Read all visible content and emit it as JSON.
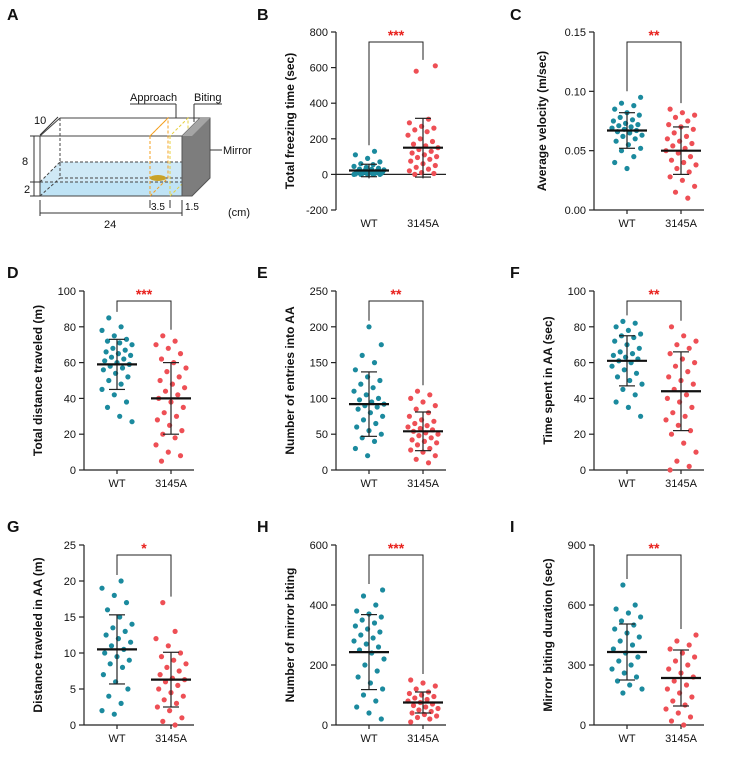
{
  "colors": {
    "wt": "#1b8a9e",
    "mutant": "#ee4f55",
    "sig": "#e8201c",
    "axis": "#222222"
  },
  "panel_a": {
    "letter": "A",
    "labels": {
      "approach": "Approach",
      "biting": "Biting",
      "mirror": "Mirror",
      "width": "10",
      "height": "8",
      "water": "2",
      "zone": "3.5",
      "gap": "1.5",
      "length": "24",
      "unit": "(cm)"
    }
  },
  "chart_data": [
    {
      "letter": "B",
      "type": "scatter",
      "ylabel": "Total freezing time (sec)",
      "categories": [
        "WT",
        "3145A"
      ],
      "ylim": [
        -200,
        800
      ],
      "yticks": [
        -200,
        0,
        200,
        400,
        600,
        800
      ],
      "significance": "***",
      "series": [
        {
          "name": "WT",
          "mean": 22,
          "sd": 35,
          "values": [
            0,
            0,
            0,
            0,
            0,
            2,
            4,
            5,
            6,
            8,
            10,
            10,
            12,
            14,
            16,
            18,
            20,
            22,
            25,
            28,
            30,
            35,
            40,
            45,
            55,
            60,
            70,
            90,
            110,
            130
          ]
        },
        {
          "name": "3145A",
          "mean": 150,
          "sd": 165,
          "values": [
            0,
            5,
            10,
            20,
            30,
            40,
            50,
            60,
            75,
            85,
            95,
            100,
            110,
            120,
            130,
            140,
            150,
            160,
            170,
            185,
            200,
            220,
            240,
            250,
            260,
            270,
            290,
            310,
            580,
            610
          ]
        }
      ]
    },
    {
      "letter": "C",
      "type": "scatter",
      "ylabel": "Average  velocity (m/sec)",
      "categories": [
        "WT",
        "3145A"
      ],
      "ylim": [
        0,
        0.15
      ],
      "yticks": [
        0.0,
        0.05,
        0.1,
        0.15
      ],
      "tick_decimals": 2,
      "significance": "**",
      "series": [
        {
          "name": "WT",
          "mean": 0.067,
          "sd": 0.015,
          "values": [
            0.035,
            0.04,
            0.045,
            0.05,
            0.052,
            0.055,
            0.058,
            0.06,
            0.062,
            0.063,
            0.065,
            0.066,
            0.067,
            0.068,
            0.069,
            0.07,
            0.071,
            0.072,
            0.073,
            0.075,
            0.076,
            0.078,
            0.08,
            0.082,
            0.085,
            0.088,
            0.09,
            0.095
          ]
        },
        {
          "name": "3145A",
          "mean": 0.05,
          "sd": 0.02,
          "values": [
            0.01,
            0.015,
            0.02,
            0.025,
            0.028,
            0.032,
            0.035,
            0.038,
            0.04,
            0.042,
            0.045,
            0.048,
            0.05,
            0.052,
            0.054,
            0.056,
            0.058,
            0.06,
            0.062,
            0.065,
            0.068,
            0.07,
            0.072,
            0.075,
            0.078,
            0.08,
            0.082,
            0.085
          ]
        }
      ]
    },
    {
      "letter": "D",
      "type": "scatter",
      "ylabel": "Total distance traveled (m)",
      "categories": [
        "WT",
        "3145A"
      ],
      "ylim": [
        0,
        100
      ],
      "yticks": [
        0,
        20,
        40,
        60,
        80,
        100
      ],
      "significance": "***",
      "series": [
        {
          "name": "WT",
          "mean": 59,
          "sd": 14,
          "values": [
            27,
            30,
            35,
            38,
            42,
            45,
            48,
            50,
            52,
            54,
            56,
            57,
            58,
            59,
            60,
            61,
            62,
            63,
            64,
            65,
            66,
            67,
            68,
            70,
            71,
            72,
            73,
            75,
            78,
            80,
            85
          ]
        },
        {
          "name": "3145A",
          "mean": 40,
          "sd": 20,
          "values": [
            5,
            8,
            10,
            14,
            18,
            20,
            22,
            25,
            28,
            30,
            32,
            35,
            38,
            40,
            42,
            44,
            46,
            48,
            50,
            52,
            55,
            57,
            60,
            62,
            65,
            68,
            70,
            72,
            75
          ]
        }
      ]
    },
    {
      "letter": "E",
      "type": "scatter",
      "ylabel": "Number of entries into AA",
      "categories": [
        "WT",
        "3145A"
      ],
      "ylim": [
        0,
        250
      ],
      "yticks": [
        0,
        50,
        100,
        150,
        200,
        250
      ],
      "significance": "**",
      "series": [
        {
          "name": "WT",
          "mean": 92,
          "sd": 45,
          "values": [
            20,
            30,
            40,
            45,
            50,
            55,
            60,
            65,
            70,
            75,
            80,
            85,
            88,
            90,
            92,
            95,
            98,
            100,
            105,
            110,
            115,
            120,
            125,
            130,
            140,
            150,
            160,
            175,
            200
          ]
        },
        {
          "name": "3145A",
          "mean": 54,
          "sd": 27,
          "values": [
            10,
            15,
            20,
            25,
            28,
            30,
            35,
            38,
            40,
            42,
            45,
            48,
            50,
            52,
            54,
            56,
            58,
            60,
            62,
            65,
            68,
            70,
            75,
            80,
            85,
            90,
            95,
            100,
            105,
            110
          ]
        }
      ]
    },
    {
      "letter": "F",
      "type": "scatter",
      "ylabel": "Time spent in AA (sec)",
      "categories": [
        "WT",
        "3145A"
      ],
      "ylim": [
        0,
        100
      ],
      "yticks": [
        0,
        20,
        40,
        60,
        80,
        100
      ],
      "significance": "**",
      "series": [
        {
          "name": "WT",
          "mean": 61,
          "sd": 14,
          "values": [
            30,
            35,
            38,
            42,
            45,
            48,
            50,
            52,
            54,
            56,
            58,
            60,
            61,
            62,
            63,
            64,
            65,
            66,
            68,
            70,
            72,
            74,
            75,
            76,
            78,
            80,
            82,
            83
          ]
        },
        {
          "name": "3145A",
          "mean": 44,
          "sd": 22,
          "values": [
            0,
            2,
            5,
            10,
            15,
            20,
            22,
            25,
            28,
            30,
            32,
            35,
            38,
            40,
            42,
            45,
            48,
            50,
            52,
            55,
            58,
            60,
            62,
            65,
            68,
            70,
            72,
            75,
            80
          ]
        }
      ]
    },
    {
      "letter": "G",
      "type": "scatter",
      "ylabel": "Distance traveled in AA (m)",
      "categories": [
        "WT",
        "3145A"
      ],
      "ylim": [
        0,
        25
      ],
      "yticks": [
        0,
        5,
        10,
        15,
        20,
        25
      ],
      "significance": "*",
      "series": [
        {
          "name": "WT",
          "mean": 10.5,
          "sd": 4.8,
          "values": [
            1.5,
            2,
            3,
            4,
            5,
            6,
            7,
            8,
            8.5,
            9,
            9.5,
            10,
            10.5,
            11,
            11.5,
            12,
            12.5,
            13,
            13.5,
            14,
            15,
            16,
            17,
            18,
            19,
            20
          ]
        },
        {
          "name": "3145A",
          "mean": 6.3,
          "sd": 3.8,
          "values": [
            0,
            0.5,
            1,
            2,
            2.5,
            3,
            3.5,
            4,
            4.5,
            5,
            5.5,
            6,
            6.3,
            6.5,
            7,
            7.5,
            8,
            8.5,
            9,
            9.5,
            10,
            11,
            12,
            13,
            17
          ]
        }
      ]
    },
    {
      "letter": "H",
      "type": "scatter",
      "ylabel": "Number of mirror biting",
      "categories": [
        "WT",
        "3145A"
      ],
      "ylim": [
        0,
        600
      ],
      "yticks": [
        0,
        200,
        400,
        600
      ],
      "significance": "***",
      "series": [
        {
          "name": "WT",
          "mean": 243,
          "sd": 125,
          "values": [
            20,
            40,
            60,
            80,
            100,
            120,
            140,
            160,
            180,
            200,
            220,
            240,
            250,
            260,
            270,
            280,
            290,
            300,
            310,
            320,
            330,
            340,
            350,
            360,
            370,
            380,
            400,
            430,
            450
          ]
        },
        {
          "name": "3145A",
          "mean": 75,
          "sd": 35,
          "values": [
            10,
            20,
            25,
            30,
            35,
            40,
            45,
            50,
            55,
            60,
            65,
            70,
            75,
            80,
            85,
            90,
            95,
            100,
            105,
            110,
            120,
            130,
            140,
            150
          ]
        }
      ]
    },
    {
      "letter": "I",
      "type": "scatter",
      "ylabel": "Mirror biting duration (sec)",
      "categories": [
        "WT",
        "3145A"
      ],
      "ylim": [
        0,
        900
      ],
      "yticks": [
        0,
        300,
        600,
        900
      ],
      "significance": "**",
      "series": [
        {
          "name": "WT",
          "mean": 365,
          "sd": 140,
          "values": [
            160,
            180,
            200,
            220,
            240,
            260,
            280,
            300,
            320,
            340,
            360,
            380,
            400,
            420,
            440,
            460,
            480,
            500,
            520,
            540,
            560,
            580,
            600,
            700
          ]
        },
        {
          "name": "3145A",
          "mean": 235,
          "sd": 140,
          "values": [
            0,
            20,
            40,
            60,
            80,
            100,
            120,
            140,
            160,
            180,
            200,
            220,
            240,
            260,
            280,
            300,
            320,
            340,
            360,
            380,
            400,
            420,
            450
          ]
        }
      ]
    }
  ]
}
